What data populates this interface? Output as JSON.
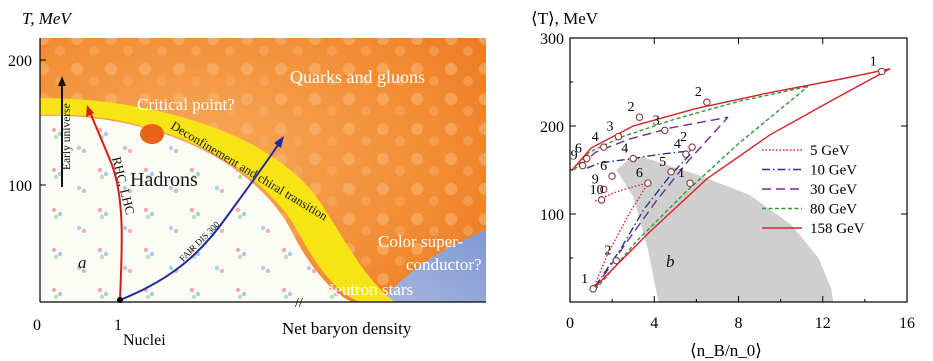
{
  "chart_data": [
    {
      "type": "diagram",
      "panel_label": "a",
      "ylabel": "T, MeV",
      "xlabel": "Net baryon density",
      "yticks": [
        0,
        100,
        200
      ],
      "xticks": [
        "0",
        "1"
      ],
      "x_nuclei": "Nuclei",
      "regions": {
        "qgp": "Quarks and gluons",
        "hadrons": "Hadrons",
        "color_sc_1": "Color super-",
        "color_sc_2": "conductor?",
        "neutron_stars": "Neutron stars"
      },
      "critical_point": "Critical point?",
      "transition_label": "Deconfinement and chiral transition",
      "trajectories": {
        "early_universe": "Early universe",
        "rhic_lhc": "RHC, LHC",
        "fair": "FAIR DIS 300"
      },
      "colors": {
        "qgp": "#f08a30",
        "band": "#f6e414",
        "blue_region": "#8fa6d8",
        "rhic": "#d41c1c",
        "fair": "#1f2aa0"
      }
    },
    {
      "type": "line",
      "panel_label": "b",
      "ylabel": "⟨T⟩, MeV",
      "xlabel": "⟨n_B/n_0⟩",
      "xlim": [
        0,
        16
      ],
      "ylim": [
        0,
        300
      ],
      "xticks": [
        0,
        4,
        8,
        12,
        16
      ],
      "yticks": [
        100,
        200,
        300
      ],
      "series": [
        {
          "name": "5 GeV",
          "color": "#d8232a",
          "dash": "1.5,2",
          "points": [
            [
              1.1,
              15
            ],
            [
              2.2,
              62
            ],
            [
              3.3,
              120
            ],
            [
              3.7,
              135
            ]
          ],
          "lower": [
            [
              1.1,
              15
            ],
            [
              1.8,
              55
            ],
            [
              2.8,
              100
            ],
            [
              3.7,
              135
            ]
          ],
          "upper": [
            [
              1.2,
              115
            ],
            [
              2.2,
              125
            ],
            [
              3.0,
              131
            ],
            [
              3.7,
              135
            ]
          ]
        },
        {
          "name": "10 GeV",
          "color": "#1f3590",
          "dash": "8,3,1.5,3",
          "lower": [
            [
              1.2,
              18
            ],
            [
              2.4,
              60
            ],
            [
              3.5,
              105
            ],
            [
              4.8,
              145
            ],
            [
              5.8,
              170
            ]
          ],
          "upper": [
            [
              0.8,
              152
            ],
            [
              1.4,
              158
            ],
            [
              2.7,
              162
            ],
            [
              4.3,
              168
            ],
            [
              5.8,
              172
            ]
          ]
        },
        {
          "name": "30 GeV",
          "color": "#6f2b9c",
          "dash": "9,5",
          "lower": [
            [
              1.2,
              16
            ],
            [
              2.6,
              65
            ],
            [
              4.1,
              115
            ],
            [
              5.6,
              160
            ],
            [
              7.5,
              210
            ]
          ],
          "upper": [
            [
              0.5,
              155
            ],
            [
              1.2,
              170
            ],
            [
              2.8,
              185
            ],
            [
              4.8,
              198
            ],
            [
              7.5,
              210
            ]
          ]
        },
        {
          "name": "80 GeV",
          "color": "#2e9a3a",
          "dash": "4,2.5",
          "lower": [
            [
              1.2,
              14
            ],
            [
              3.2,
              70
            ],
            [
              5.5,
              125
            ],
            [
              8.0,
              180
            ],
            [
              11.3,
              245
            ]
          ],
          "upper": [
            [
              0.2,
              150
            ],
            [
              0.9,
              170
            ],
            [
              2.5,
              188
            ],
            [
              5.0,
              208
            ],
            [
              8.0,
              228
            ],
            [
              11.3,
              245
            ]
          ]
        },
        {
          "name": "158 GeV",
          "color": "#d8232a",
          "dash": "",
          "lower": [
            [
              1.1,
              15
            ],
            [
              3.8,
              80
            ],
            [
              6.5,
              140
            ],
            [
              9.5,
              190
            ],
            [
              12.5,
              230
            ],
            [
              15.2,
              265
            ]
          ],
          "upper": [
            [
              0.1,
              150
            ],
            [
              1.0,
              175
            ],
            [
              3.0,
              200
            ],
            [
              6.0,
              220
            ],
            [
              9.5,
              238
            ],
            [
              13.0,
              254
            ],
            [
              15.2,
              265
            ]
          ]
        }
      ],
      "markers": [
        {
          "label": "1",
          "x": 1.1,
          "y": 15
        },
        {
          "label": "1",
          "x": 5.7,
          "y": 135
        },
        {
          "label": "1",
          "x": 14.8,
          "y": 262
        },
        {
          "label": "2",
          "x": 2.2,
          "y": 47
        },
        {
          "label": "2",
          "x": 6.5,
          "y": 227
        },
        {
          "label": "2",
          "x": 3.3,
          "y": 210
        },
        {
          "label": "2",
          "x": 5.8,
          "y": 176
        },
        {
          "label": "3",
          "x": 2.3,
          "y": 188
        },
        {
          "label": "3",
          "x": 4.5,
          "y": 195
        },
        {
          "label": "4",
          "x": 1.6,
          "y": 176
        },
        {
          "label": "4",
          "x": 3.0,
          "y": 163
        },
        {
          "label": "4",
          "x": 5.5,
          "y": 168
        },
        {
          "label": "5",
          "x": 4.8,
          "y": 148
        },
        {
          "label": "6",
          "x": 0.8,
          "y": 163
        },
        {
          "label": "6",
          "x": 2.0,
          "y": 143
        },
        {
          "label": "6",
          "x": 3.7,
          "y": 135
        },
        {
          "label": "9",
          "x": 0.6,
          "y": 155
        },
        {
          "label": "9",
          "x": 1.6,
          "y": 128
        },
        {
          "label": "10",
          "x": 1.5,
          "y": 116
        }
      ],
      "labels": {
        "b": "b"
      }
    }
  ]
}
